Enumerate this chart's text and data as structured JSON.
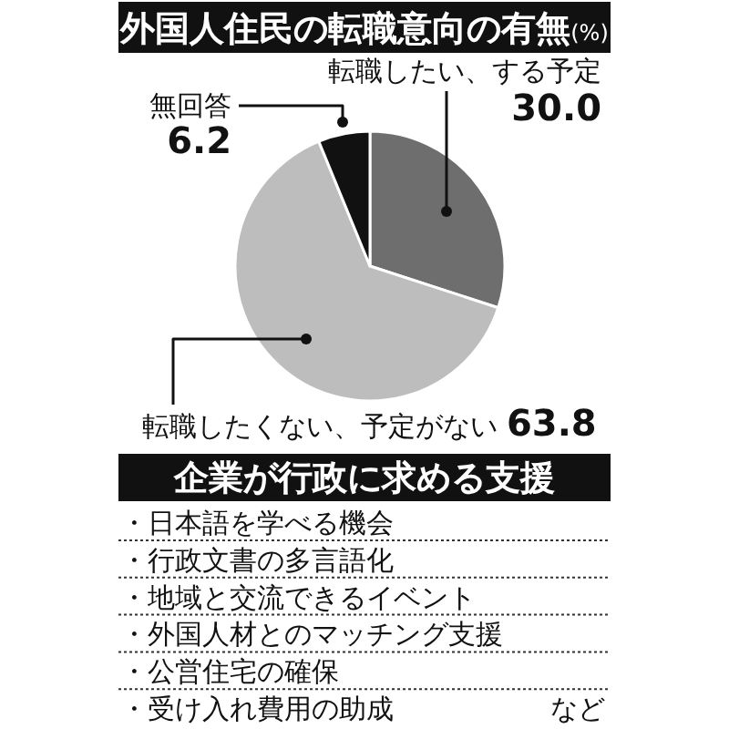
{
  "chart_data": [
    {
      "type": "pie",
      "title": "外国人住民の転職意向の有無(%)",
      "categories": [
        "転職したい、する予定",
        "転職したくない、予定がない",
        "無回答"
      ],
      "values": [
        30.0,
        63.8,
        6.2
      ],
      "colors": [
        "#6e6e6e",
        "#bdbdbd",
        "#111111"
      ],
      "value_labels": [
        "30.0",
        "63.8",
        "6.2"
      ]
    },
    {
      "type": "other",
      "title": "企業が行政に求める支援",
      "annotations": [
        "・日本語を学べる機会",
        "・行政文書の多言語化",
        "・地域と交流できるイベント",
        "・外国人材とのマッチング支援",
        "・公営住宅の確保",
        "・受け入れ費用の助成",
        "など"
      ]
    }
  ]
}
